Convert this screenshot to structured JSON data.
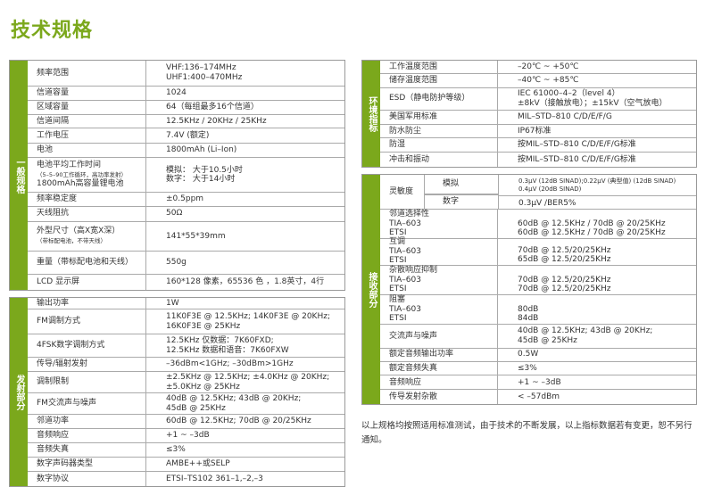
{
  "title": "技术规格",
  "general": {
    "side": "一般规格",
    "rows": [
      {
        "label": [
          "频率范围"
        ],
        "value": [
          "VHF:136–174MHz",
          "UHF1:400–470MHz"
        ]
      },
      {
        "label": [
          "信道容量"
        ],
        "value": [
          "1024"
        ]
      },
      {
        "label": [
          "区域容量"
        ],
        "value": [
          "64（每组最多16个信道）"
        ]
      },
      {
        "label": [
          "信道间隔"
        ],
        "value": [
          "12.5KHz / 20KHz / 25KHz"
        ]
      },
      {
        "label": [
          "工作电压"
        ],
        "value": [
          "7.4V (额定)"
        ]
      },
      {
        "label": [
          "电池"
        ],
        "value": [
          "1800mAh (Li–Ion)"
        ]
      },
      {
        "label": [
          "电池平均工作时间",
          "（5–5–90工作循环，高功率发射）",
          "1800mAh高容量锂电池"
        ],
        "value": [
          "模拟：  大于10.5小时",
          "数字：  大于14小时"
        ]
      },
      {
        "label": [
          "频率稳定度"
        ],
        "value": [
          "±0.5ppm"
        ]
      },
      {
        "label": [
          "天线阻抗"
        ],
        "value": [
          "50Ω"
        ]
      },
      {
        "label": [
          "外型尺寸（高X宽X深）",
          "（带标配电池，不带天线）"
        ],
        "value": [
          "141*55*39mm"
        ]
      },
      {
        "label": [
          "重量（带标配电池和天线）"
        ],
        "value": [
          "550g"
        ]
      },
      {
        "label": [
          "LCD 显示屏"
        ],
        "value": [
          "160*128 像素，65536 色 ，1.8英寸，4行"
        ]
      }
    ]
  },
  "transmit": {
    "side": "发射部分",
    "rows": [
      {
        "label": [
          "输出功率"
        ],
        "value": [
          "1W"
        ]
      },
      {
        "label": [
          "FM调制方式"
        ],
        "value": [
          "11K0F3E @ 12.5KHz; 14K0F3E @ 20KHz;",
          "16K0F3E @ 25KHz"
        ]
      },
      {
        "label": [
          "4FSK数字调制方式"
        ],
        "value": [
          "12.5KHz 仅数据：7K60FXD;",
          "12.5KHz 数据和语音：7K60FXW"
        ]
      },
      {
        "label": [
          "传导/辐射发射"
        ],
        "value": [
          "–36dBm<1GHz; –30dBm>1GHz"
        ]
      },
      {
        "label": [
          "调制限制"
        ],
        "value": [
          "±2.5KHz @ 12.5KHz; ±4.0KHz @ 20KHz;",
          "±5.0KHz @ 25KHz"
        ]
      },
      {
        "label": [
          "FM交流声与噪声"
        ],
        "value": [
          "40dB @ 12.5KHz; 43dB @ 20KHz;",
          "45dB @ 25KHz"
        ]
      },
      {
        "label": [
          "邻道功率"
        ],
        "value": [
          "60dB @ 12.5KHz; 70dB @ 20/25KHz"
        ]
      },
      {
        "label": [
          "音频响应"
        ],
        "value": [
          "+1 ~ –3dB"
        ]
      },
      {
        "label": [
          "音频失真"
        ],
        "value": [
          "≤3%"
        ]
      },
      {
        "label": [
          "数字声码器类型"
        ],
        "value": [
          "AMBE++或SELP"
        ]
      },
      {
        "label": [
          "数字协议"
        ],
        "value": [
          "ETSI–TS102 361–1,–2,–3"
        ]
      }
    ]
  },
  "environment": {
    "side": "环境指标",
    "rows": [
      {
        "label": [
          "工作温度范围"
        ],
        "value": [
          "–20℃ ~ +50℃"
        ]
      },
      {
        "label": [
          "储存温度范围"
        ],
        "value": [
          "–40℃ ~ +85℃"
        ]
      },
      {
        "label": [
          "ESD（静电防护等级）"
        ],
        "value": [
          "IEC 61000–4–2（level 4）",
          "±8kV（接触放电）；±15kV（空气放电）"
        ]
      },
      {
        "label": [
          "美国军用标准"
        ],
        "value": [
          "MIL–STD–810 C/D/E/F/G"
        ]
      },
      {
        "label": [
          "防水防尘"
        ],
        "value": [
          "IP67标准"
        ]
      },
      {
        "label": [
          "防湿"
        ],
        "value": [
          "按MIL–STD–810 C/D/E/F/G标准"
        ]
      },
      {
        "label": [
          "冲击和振动"
        ],
        "value": [
          "按MIL–STD–810 C/D/E/F/G标准"
        ]
      }
    ]
  },
  "receive": {
    "side": "接收部分",
    "sensitivity": {
      "label": "灵敏度",
      "analog_label": "模拟",
      "analog_value": [
        "0.3μV (12dB SINAD);0.22μV (典型值) (12dB SINAD)",
        "0.4μV (20dB SINAD)"
      ],
      "digital_label": "数字",
      "digital_value": "0.3μV /BER5%"
    },
    "rows": [
      {
        "label": [
          "邻道选择性",
          "TIA–603",
          "ETSI"
        ],
        "value": [
          "",
          "60dB @ 12.5KHz / 70dB @ 20/25KHz",
          "60dB @ 12.5KHz / 70dB @ 20/25KHz"
        ]
      },
      {
        "label": [
          "互调",
          "TIA–603",
          "ETSI"
        ],
        "value": [
          "",
          "70dB @ 12.5/20/25KHz",
          "65dB @ 12.5/20/25KHz"
        ]
      },
      {
        "label": [
          "杂散响应抑制",
          "TIA–603",
          "ETSI"
        ],
        "value": [
          "",
          "70dB @ 12.5/20/25KHz",
          "70dB @ 12.5/20/25KHz"
        ]
      },
      {
        "label": [
          "阻塞",
          "TIA–603",
          "ETSI"
        ],
        "value": [
          "",
          "80dB",
          "84dB"
        ]
      },
      {
        "label": [
          "交流声与噪声"
        ],
        "value": [
          "40dB @ 12.5KHz; 43dB @ 20KHz;",
          "45dB @ 25KHz"
        ]
      },
      {
        "label": [
          "额定音频输出功率"
        ],
        "value": [
          "0.5W"
        ]
      },
      {
        "label": [
          "额定音频失真"
        ],
        "value": [
          "≤3%"
        ]
      },
      {
        "label": [
          "音频响应"
        ],
        "value": [
          "+1 ~ –3dB"
        ]
      },
      {
        "label": [
          "传导发射杂散"
        ],
        "value": [
          "< –57dBm"
        ]
      }
    ]
  },
  "note": "以上规格均按照适用标准测试，由于技术的不断发展，以上指标数据若有变更，恕不另行通知。",
  "colors": {
    "accent": "#7ba81c",
    "border": "#999999"
  }
}
